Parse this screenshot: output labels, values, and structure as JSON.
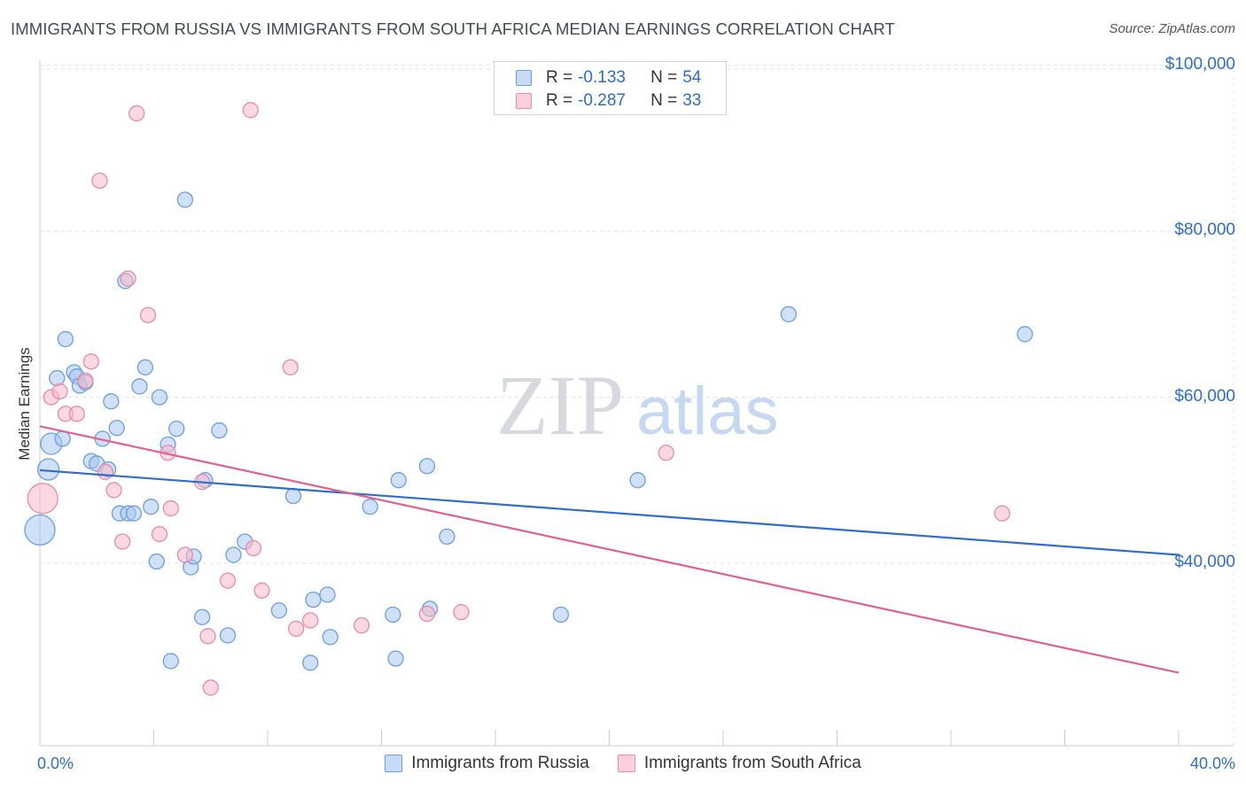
{
  "chart_data": {
    "type": "scatter",
    "title": "IMMIGRANTS FROM RUSSIA VS IMMIGRANTS FROM SOUTH AFRICA MEDIAN EARNINGS CORRELATION CHART",
    "source": "Source: ZipAtlas.com",
    "watermark": {
      "zip": "ZIP",
      "atlas": "atlas"
    },
    "ylabel": "Median Earnings",
    "xlim": [
      0,
      40
    ],
    "ylim": [
      18000,
      102000
    ],
    "x_tick_labels": [
      "0.0%",
      "40.0%"
    ],
    "y_ticks": [
      {
        "value": 40000,
        "label": "$40,000"
      },
      {
        "value": 60000,
        "label": "$60,000"
      },
      {
        "value": 80000,
        "label": "$80,000"
      },
      {
        "value": 100000,
        "label": "$100,000"
      }
    ],
    "legend": [
      {
        "r_label": "R = ",
        "r": "-0.133",
        "n_label": "N = ",
        "n": "54"
      },
      {
        "r_label": "R = ",
        "r": "-0.287",
        "n_label": "N = ",
        "n": "33"
      }
    ],
    "series": [
      {
        "name": "Immigrants from Russia",
        "color": "#a8c7f0",
        "stroke": "#6b9fe0",
        "line_color": "#2f6ec6",
        "trend": {
          "x0": 0,
          "y0": 51200,
          "x1": 40,
          "y1": 41000
        },
        "points": [
          {
            "x": 0.0,
            "y": 44000,
            "s": 3
          },
          {
            "x": 0.3,
            "y": 51300,
            "s": 2
          },
          {
            "x": 0.4,
            "y": 54400,
            "s": 2
          },
          {
            "x": 0.6,
            "y": 62300
          },
          {
            "x": 0.8,
            "y": 55000
          },
          {
            "x": 0.9,
            "y": 67000
          },
          {
            "x": 1.2,
            "y": 63000
          },
          {
            "x": 1.3,
            "y": 62500
          },
          {
            "x": 1.4,
            "y": 61400
          },
          {
            "x": 1.6,
            "y": 61800
          },
          {
            "x": 1.8,
            "y": 52300
          },
          {
            "x": 2.0,
            "y": 52000
          },
          {
            "x": 2.2,
            "y": 55000
          },
          {
            "x": 2.4,
            "y": 51300
          },
          {
            "x": 2.5,
            "y": 59500
          },
          {
            "x": 2.7,
            "y": 56300
          },
          {
            "x": 2.8,
            "y": 46000
          },
          {
            "x": 3.0,
            "y": 74000
          },
          {
            "x": 3.1,
            "y": 46000
          },
          {
            "x": 3.3,
            "y": 46000
          },
          {
            "x": 3.5,
            "y": 61300
          },
          {
            "x": 3.7,
            "y": 63600
          },
          {
            "x": 3.9,
            "y": 46800
          },
          {
            "x": 4.1,
            "y": 40200
          },
          {
            "x": 4.2,
            "y": 60000
          },
          {
            "x": 4.5,
            "y": 54300
          },
          {
            "x": 4.6,
            "y": 28200
          },
          {
            "x": 4.8,
            "y": 56200
          },
          {
            "x": 5.1,
            "y": 83800
          },
          {
            "x": 5.3,
            "y": 39500
          },
          {
            "x": 5.4,
            "y": 40800
          },
          {
            "x": 5.7,
            "y": 33500
          },
          {
            "x": 5.8,
            "y": 50000
          },
          {
            "x": 6.3,
            "y": 56000
          },
          {
            "x": 6.6,
            "y": 31300
          },
          {
            "x": 6.8,
            "y": 41000
          },
          {
            "x": 7.2,
            "y": 42600
          },
          {
            "x": 8.4,
            "y": 34300
          },
          {
            "x": 8.9,
            "y": 48100
          },
          {
            "x": 9.5,
            "y": 28000
          },
          {
            "x": 9.6,
            "y": 35600
          },
          {
            "x": 10.1,
            "y": 36200
          },
          {
            "x": 10.2,
            "y": 31100
          },
          {
            "x": 11.6,
            "y": 46800
          },
          {
            "x": 12.4,
            "y": 33800
          },
          {
            "x": 12.5,
            "y": 28500
          },
          {
            "x": 12.6,
            "y": 50000
          },
          {
            "x": 13.6,
            "y": 51700
          },
          {
            "x": 13.7,
            "y": 34500
          },
          {
            "x": 14.3,
            "y": 43200
          },
          {
            "x": 18.3,
            "y": 33800
          },
          {
            "x": 21.0,
            "y": 50000
          },
          {
            "x": 26.3,
            "y": 70000
          },
          {
            "x": 34.6,
            "y": 67600
          }
        ]
      },
      {
        "name": "Immigrants from South Africa",
        "color": "#f7b8cb",
        "stroke": "#e88aa8",
        "line_color": "#e0608f",
        "trend": {
          "x0": 0,
          "y0": 56500,
          "x1": 40,
          "y1": 26800
        },
        "points": [
          {
            "x": 0.1,
            "y": 47800,
            "s": 3
          },
          {
            "x": 0.4,
            "y": 60000
          },
          {
            "x": 0.7,
            "y": 60700
          },
          {
            "x": 0.9,
            "y": 58000
          },
          {
            "x": 1.3,
            "y": 58000
          },
          {
            "x": 1.6,
            "y": 62000
          },
          {
            "x": 1.8,
            "y": 64300
          },
          {
            "x": 2.1,
            "y": 86100
          },
          {
            "x": 2.3,
            "y": 51000
          },
          {
            "x": 2.6,
            "y": 48800
          },
          {
            "x": 2.9,
            "y": 42600
          },
          {
            "x": 3.1,
            "y": 74300
          },
          {
            "x": 3.4,
            "y": 94200
          },
          {
            "x": 3.8,
            "y": 69900
          },
          {
            "x": 4.2,
            "y": 43500
          },
          {
            "x": 4.5,
            "y": 53300
          },
          {
            "x": 4.6,
            "y": 46600
          },
          {
            "x": 5.1,
            "y": 41000
          },
          {
            "x": 5.7,
            "y": 49800
          },
          {
            "x": 5.9,
            "y": 31200
          },
          {
            "x": 6.0,
            "y": 25000
          },
          {
            "x": 6.6,
            "y": 37900
          },
          {
            "x": 7.4,
            "y": 94600
          },
          {
            "x": 7.5,
            "y": 41800
          },
          {
            "x": 7.8,
            "y": 36700
          },
          {
            "x": 8.8,
            "y": 63600
          },
          {
            "x": 9.0,
            "y": 32100
          },
          {
            "x": 9.5,
            "y": 33100
          },
          {
            "x": 11.3,
            "y": 32500
          },
          {
            "x": 13.6,
            "y": 33900
          },
          {
            "x": 14.8,
            "y": 34100
          },
          {
            "x": 22.0,
            "y": 53300
          },
          {
            "x": 33.8,
            "y": 46000
          }
        ]
      }
    ]
  }
}
